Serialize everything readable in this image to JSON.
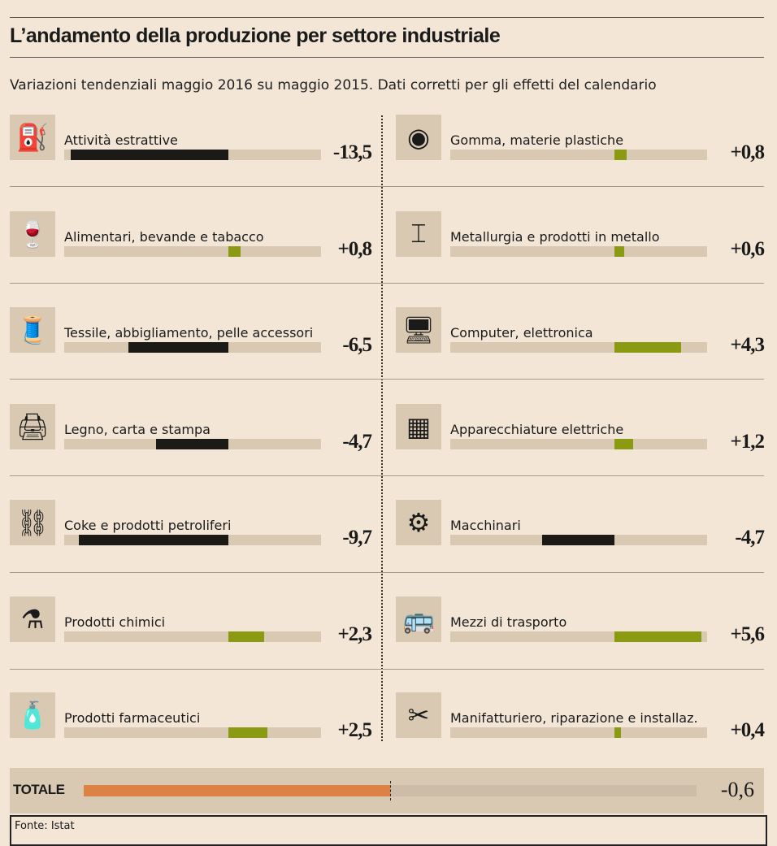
{
  "title": "L’andamento della produzione per settore industriale",
  "subtitle": "Variazioni tendenziali maggio 2016 su maggio 2015. Dati corretti per gli effetti del calendario",
  "colors": {
    "negative": "#1c1a17",
    "positive": "#8a9a12",
    "total": "#dd8245"
  },
  "chart_data": {
    "type": "bar",
    "title": "L’andamento della produzione per settore industriale",
    "categories": [
      "Attività estrattive",
      "Alimentari, bevande e tabacco",
      "Tessile, abbigliamento, pelle accessori",
      "Legno, carta e stampa",
      "Coke e prodotti petroliferi",
      "Prodotti chimici",
      "Prodotti farmaceutici",
      "Gomma, materie plastiche",
      "Metallurgia e prodotti in metallo",
      "Computer, elettronica",
      "Apparecchiature elettriche",
      "Macchinari",
      "Mezzi di trasporto",
      "Manifatturiero, riparazione e installaz."
    ],
    "values": [
      -13.5,
      0.8,
      -6.5,
      -4.7,
      -9.7,
      2.3,
      2.5,
      0.8,
      0.6,
      4.3,
      1.2,
      -4.7,
      5.6,
      0.4
    ],
    "value_labels": [
      "-13,5",
      "+0,8",
      "-6,5",
      "-4,7",
      "-9,7",
      "+2,3",
      "+2,5",
      "+0,8",
      "+0,6",
      "+4,3",
      "+1,2",
      "-4,7",
      "+5,6",
      "+0,4"
    ],
    "icons": [
      "oil-pump-icon",
      "wine-glass-icon",
      "thread-spool-icon",
      "printer-icon",
      "oil-derrick-icon",
      "flask-icon",
      "pill-bottle-icon",
      "tire-icon",
      "steel-beam-icon",
      "computer-monitor-icon",
      "microchip-icon",
      "machinery-icon",
      "bus-icon",
      "tools-icon"
    ],
    "total": {
      "label": "TOTALE",
      "value": -0.6,
      "value_label": "-0,6"
    }
  },
  "source": "Fonte: Istat"
}
